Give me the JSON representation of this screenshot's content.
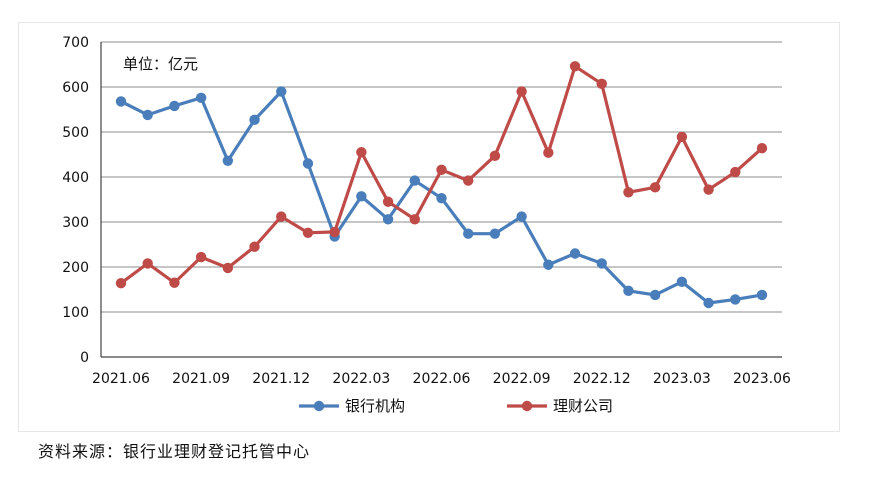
{
  "chart_data": {
    "type": "line",
    "unit_label": "单位：亿元",
    "ylim": [
      0,
      700
    ],
    "yticks": [
      0,
      100,
      200,
      300,
      400,
      500,
      600,
      700
    ],
    "x": [
      "2021.06",
      "2021.07",
      "2021.08",
      "2021.09",
      "2021.10",
      "2021.11",
      "2021.12",
      "2022.01",
      "2022.02",
      "2022.03",
      "2022.04",
      "2022.05",
      "2022.06",
      "2022.07",
      "2022.08",
      "2022.09",
      "2022.10",
      "2022.11",
      "2022.12",
      "2023.01",
      "2023.02",
      "2023.03",
      "2023.04",
      "2023.05",
      "2023.06"
    ],
    "xtick_labels": [
      "2021.06",
      "2021.09",
      "2021.12",
      "2022.03",
      "2022.06",
      "2022.09",
      "2022.12",
      "2023.03",
      "2023.06"
    ],
    "grid": true,
    "legend_position": "bottom",
    "series": [
      {
        "name": "银行机构",
        "color": "#4a7ebb",
        "values": [
          568,
          538,
          558,
          576,
          436,
          527,
          590,
          430,
          268,
          357,
          306,
          392,
          353,
          274,
          274,
          312,
          205,
          230,
          208,
          147,
          138,
          167,
          120,
          128,
          138
        ]
      },
      {
        "name": "理财公司",
        "color": "#be4b48",
        "values": [
          164,
          208,
          165,
          222,
          198,
          245,
          312,
          276,
          278,
          455,
          345,
          306,
          416,
          392,
          447,
          590,
          454,
          646,
          607,
          366,
          377,
          489,
          372,
          411,
          464
        ]
      }
    ]
  },
  "source_note": "资料来源：银行业理财登记托管中心"
}
